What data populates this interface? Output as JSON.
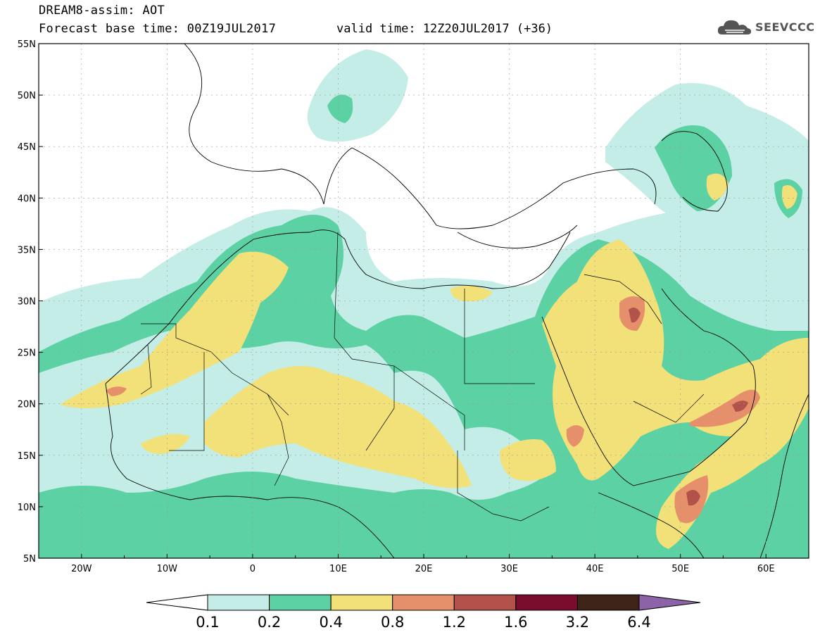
{
  "header": {
    "title": "DREAM8-assim: AOT",
    "base_time": "Forecast base time: 00Z19JUL2017",
    "valid_time": "valid time: 12Z20JUL2017 (+36)",
    "logo_text": "SEEVCCC",
    "logo_icon": "cloud-icon"
  },
  "map": {
    "projection": "cylindrical lat-lon",
    "lon_range": [
      -25,
      65
    ],
    "lat_range": [
      5,
      55
    ],
    "lat_labels": [
      "55N",
      "50N",
      "45N",
      "40N",
      "35N",
      "30N",
      "25N",
      "20N",
      "15N",
      "10N",
      "5N"
    ],
    "lon_labels": [
      "20W",
      "10W",
      "0",
      "10E",
      "20E",
      "30E",
      "40E",
      "50E",
      "60E"
    ],
    "background_color": "#ffffff",
    "coastline_color": "#000000"
  },
  "colorbar": {
    "labels": [
      "0.1",
      "0.2",
      "0.4",
      "0.8",
      "1.2",
      "1.6",
      "3.2",
      "6.4"
    ],
    "colors": [
      "#c3ede6",
      "#5bd1a4",
      "#f2e078",
      "#e6906b",
      "#b2524a",
      "#7a0d2e",
      "#3d2417",
      "#8b63a6"
    ],
    "under_color": "#ffffff"
  },
  "legend_levels": {
    "very_light": "#c3ede6",
    "green": "#5bd1a4",
    "yellow": "#f2e078",
    "orange": "#e6906b",
    "brown": "#b2524a"
  }
}
